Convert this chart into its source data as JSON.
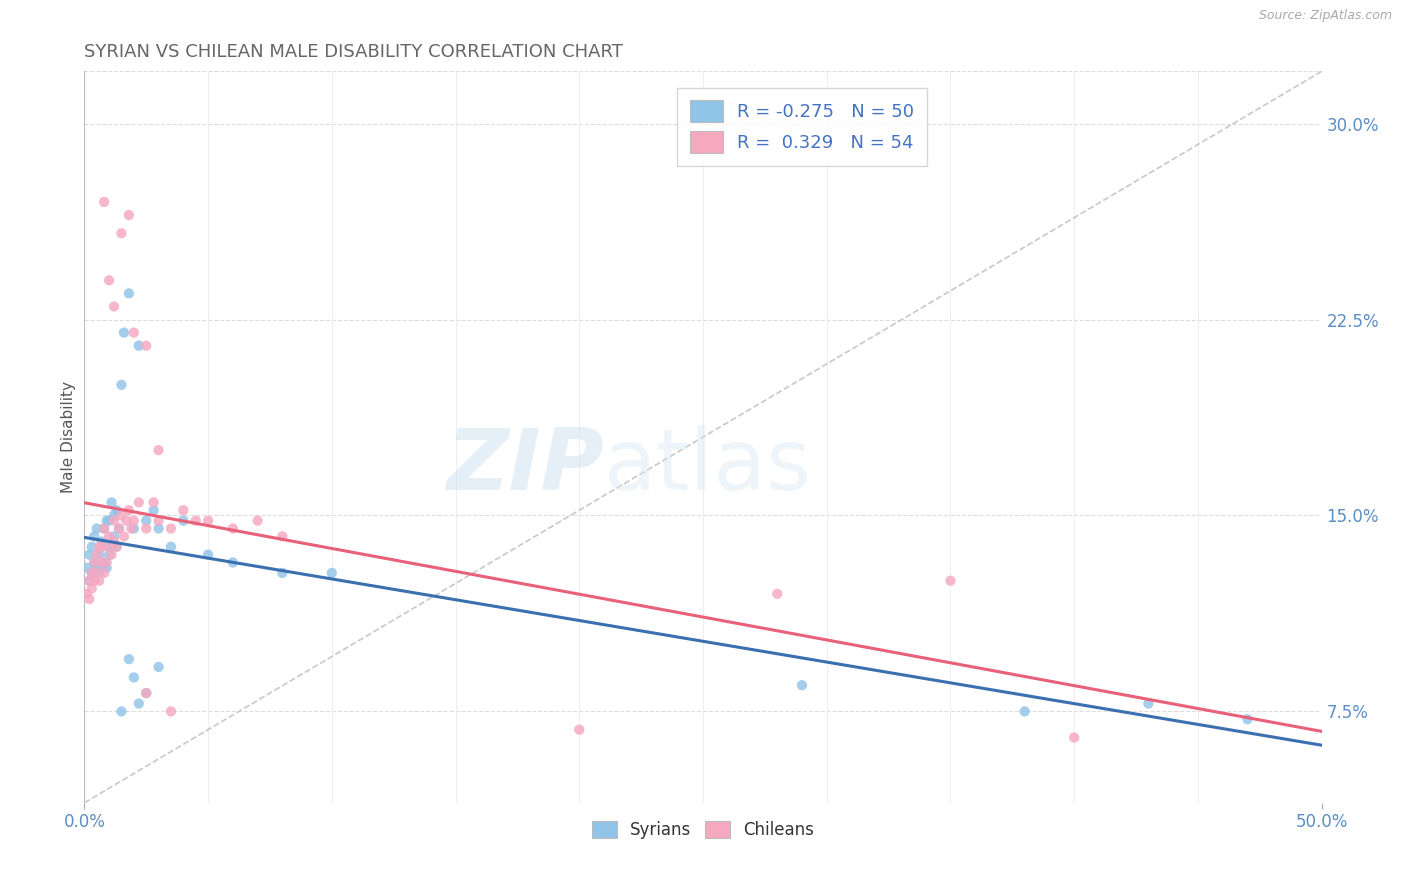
{
  "title": "SYRIAN VS CHILEAN MALE DISABILITY CORRELATION CHART",
  "source": "Source: ZipAtlas.com",
  "ylabel": "Male Disability",
  "xlim": [
    0.0,
    0.5
  ],
  "ylim": [
    0.04,
    0.32
  ],
  "watermark_zip": "ZIP",
  "watermark_atlas": "atlas",
  "legend_r_syrians": "-0.275",
  "legend_n_syrians": "50",
  "legend_r_chileans": "0.329",
  "legend_n_chileans": "54",
  "syrian_color": "#90c4e8",
  "chilean_color": "#f5a8c0",
  "syrian_line_color": "#3a6fb0",
  "chilean_line_color": "#e8607a",
  "diagonal_line_color": "#c8c8c8",
  "grid_color": "#dddddd",
  "ytick_vals": [
    0.075,
    0.15,
    0.225,
    0.3
  ],
  "ytick_labels": [
    "7.5%",
    "15.0%",
    "22.5%",
    "30.0%"
  ],
  "xtick_vals": [
    0.0,
    0.5
  ],
  "xtick_labels": [
    "0.0%",
    "50.0%"
  ],
  "syrians_x": [
    0.001,
    0.002,
    0.002,
    0.003,
    0.003,
    0.004,
    0.004,
    0.005,
    0.005,
    0.006,
    0.006,
    0.007,
    0.007,
    0.008,
    0.008,
    0.009,
    0.009,
    0.01,
    0.01,
    0.011,
    0.011,
    0.012,
    0.012,
    0.013,
    0.013,
    0.014,
    0.015,
    0.016,
    0.018,
    0.02,
    0.022,
    0.025,
    0.028,
    0.03,
    0.035,
    0.04,
    0.05,
    0.06,
    0.08,
    0.1,
    0.02,
    0.015,
    0.025,
    0.018,
    0.022,
    0.03,
    0.29,
    0.38,
    0.43,
    0.47
  ],
  "syrians_y": [
    0.13,
    0.125,
    0.135,
    0.128,
    0.138,
    0.132,
    0.142,
    0.13,
    0.145,
    0.128,
    0.135,
    0.14,
    0.138,
    0.145,
    0.132,
    0.148,
    0.13,
    0.135,
    0.148,
    0.138,
    0.155,
    0.142,
    0.15,
    0.138,
    0.152,
    0.145,
    0.2,
    0.22,
    0.235,
    0.145,
    0.215,
    0.148,
    0.152,
    0.145,
    0.138,
    0.148,
    0.135,
    0.132,
    0.128,
    0.128,
    0.088,
    0.075,
    0.082,
    0.095,
    0.078,
    0.092,
    0.085,
    0.075,
    0.078,
    0.072
  ],
  "chileans_x": [
    0.001,
    0.002,
    0.002,
    0.003,
    0.003,
    0.004,
    0.004,
    0.005,
    0.005,
    0.006,
    0.006,
    0.007,
    0.007,
    0.008,
    0.008,
    0.009,
    0.01,
    0.01,
    0.011,
    0.012,
    0.012,
    0.013,
    0.014,
    0.015,
    0.016,
    0.017,
    0.018,
    0.019,
    0.02,
    0.022,
    0.025,
    0.028,
    0.03,
    0.035,
    0.04,
    0.045,
    0.05,
    0.06,
    0.07,
    0.08,
    0.01,
    0.012,
    0.015,
    0.008,
    0.018,
    0.02,
    0.025,
    0.03,
    0.28,
    0.35,
    0.025,
    0.035,
    0.2,
    0.4
  ],
  "chileans_y": [
    0.12,
    0.125,
    0.118,
    0.128,
    0.122,
    0.132,
    0.125,
    0.135,
    0.128,
    0.138,
    0.125,
    0.132,
    0.138,
    0.128,
    0.145,
    0.132,
    0.138,
    0.142,
    0.135,
    0.14,
    0.148,
    0.138,
    0.145,
    0.15,
    0.142,
    0.148,
    0.152,
    0.145,
    0.148,
    0.155,
    0.145,
    0.155,
    0.148,
    0.145,
    0.152,
    0.148,
    0.148,
    0.145,
    0.148,
    0.142,
    0.24,
    0.23,
    0.258,
    0.27,
    0.265,
    0.22,
    0.215,
    0.175,
    0.12,
    0.125,
    0.082,
    0.075,
    0.068,
    0.065
  ]
}
